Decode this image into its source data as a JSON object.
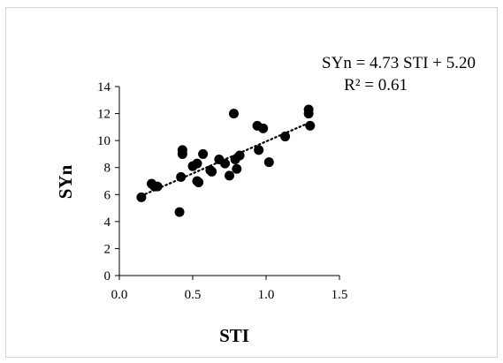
{
  "chart_data": {
    "type": "scatter",
    "title": "",
    "xlabel": "STI",
    "ylabel": "SYn",
    "xlim": [
      0.0,
      1.5
    ],
    "ylim": [
      0,
      14
    ],
    "x_ticks": [
      "0.0",
      "0.5",
      "1.0",
      "1.5"
    ],
    "y_ticks": [
      "0",
      "2",
      "4",
      "6",
      "8",
      "10",
      "12",
      "14"
    ],
    "grid": false,
    "legend": "none",
    "marker_color": "#000000",
    "trendline": {
      "style": "dotted",
      "slope": 4.73,
      "intercept": 5.2,
      "x_range": [
        0.15,
        1.3
      ]
    },
    "annotations": {
      "equation": "SYn = 4.73  STI + 5.20",
      "r_squared": "R² = 0.61"
    },
    "points": [
      {
        "x": 0.15,
        "y": 5.8
      },
      {
        "x": 0.22,
        "y": 6.8
      },
      {
        "x": 0.24,
        "y": 6.6
      },
      {
        "x": 0.26,
        "y": 6.6
      },
      {
        "x": 0.41,
        "y": 4.7
      },
      {
        "x": 0.42,
        "y": 7.3
      },
      {
        "x": 0.43,
        "y": 9.3
      },
      {
        "x": 0.43,
        "y": 9.0
      },
      {
        "x": 0.5,
        "y": 8.1
      },
      {
        "x": 0.53,
        "y": 8.3
      },
      {
        "x": 0.53,
        "y": 7.0
      },
      {
        "x": 0.54,
        "y": 6.9
      },
      {
        "x": 0.57,
        "y": 9.0
      },
      {
        "x": 0.62,
        "y": 7.8
      },
      {
        "x": 0.63,
        "y": 7.7
      },
      {
        "x": 0.68,
        "y": 8.6
      },
      {
        "x": 0.72,
        "y": 8.3
      },
      {
        "x": 0.75,
        "y": 7.4
      },
      {
        "x": 0.78,
        "y": 12.0
      },
      {
        "x": 0.79,
        "y": 8.6
      },
      {
        "x": 0.8,
        "y": 7.9
      },
      {
        "x": 0.82,
        "y": 8.9
      },
      {
        "x": 0.94,
        "y": 11.1
      },
      {
        "x": 0.95,
        "y": 9.3
      },
      {
        "x": 0.98,
        "y": 10.9
      },
      {
        "x": 1.02,
        "y": 8.4
      },
      {
        "x": 1.13,
        "y": 10.3
      },
      {
        "x": 1.29,
        "y": 12.3
      },
      {
        "x": 1.29,
        "y": 12.0
      },
      {
        "x": 1.3,
        "y": 11.1
      }
    ]
  }
}
